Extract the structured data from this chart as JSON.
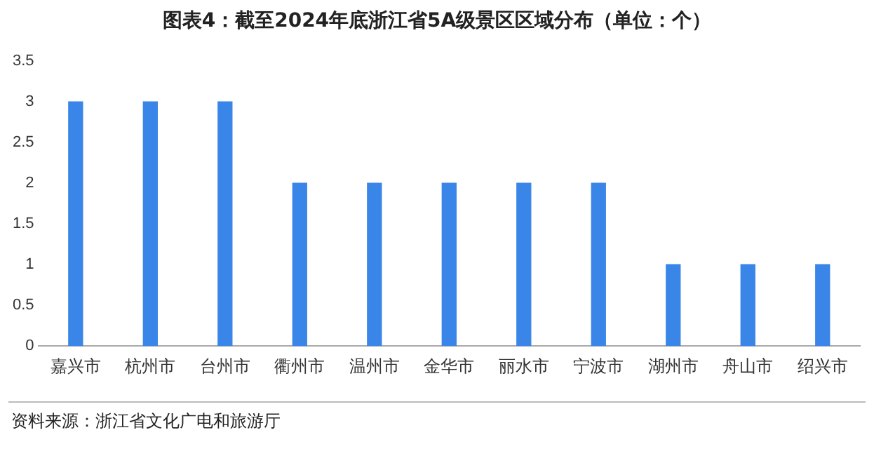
{
  "chart_data": {
    "type": "bar",
    "title": "图表4：截至2024年底浙江省5A级景区区域分布（单位：个）",
    "categories": [
      "嘉兴市",
      "杭州市",
      "台州市",
      "衢州市",
      "温州市",
      "金华市",
      "丽水市",
      "宁波市",
      "湖州市",
      "舟山市",
      "绍兴市"
    ],
    "values": [
      3,
      3,
      3,
      2,
      2,
      2,
      2,
      2,
      1,
      1,
      1
    ],
    "color": "#3a86e8",
    "ylim": [
      0,
      3.5
    ],
    "yticks": [
      0,
      0.5,
      1,
      1.5,
      2,
      2.5,
      3,
      3.5
    ],
    "grid": false,
    "legend": false,
    "annotations": [
      "资料来源：浙江省文化广电和旅游厅"
    ]
  }
}
